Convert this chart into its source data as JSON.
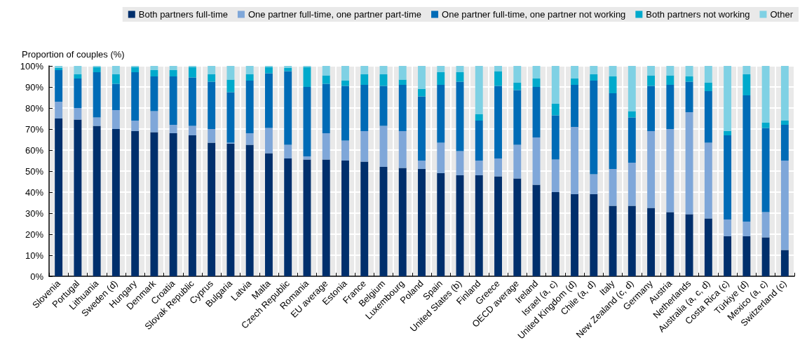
{
  "chart_data": {
    "type": "bar",
    "stacked": true,
    "ylabel": "Proportion of couples (%)",
    "categories": [
      "Slovenia",
      "Portugal",
      "Lithuania",
      "Sweden (d)",
      "Hungary",
      "Denmark",
      "Croatia",
      "Slovak Republic",
      "Cyprus",
      "Bulgaria",
      "Latvia",
      "Malta",
      "Czech Republic",
      "Romania",
      "EU average",
      "Estonia",
      "France",
      "Belgium",
      "Luxembourg",
      "Poland",
      "Spain",
      "United States (b)",
      "Finland",
      "Greece",
      "OECD average",
      "Ireland",
      "Israel (a, c)",
      "United Kingdom (d)",
      "Chile (a, d)",
      "Italy",
      "New Zealand (c, d)",
      "Germany",
      "Austria",
      "Netherlands",
      "Australia (a, c, d)",
      "Costa Rica (c)",
      "Türkiye (d)",
      "Mexico (a, c)",
      "Switzerland (c)"
    ],
    "series": [
      {
        "name": "Both partners full-time",
        "color": "#002f6c",
        "values": [
          75,
          74.5,
          71.5,
          70,
          69,
          68.5,
          68,
          67,
          63.5,
          63,
          62.5,
          58.5,
          56,
          55.5,
          55.5,
          55,
          54.5,
          52,
          51.5,
          51,
          49,
          48,
          48,
          47.5,
          46.5,
          43.5,
          40,
          39,
          39,
          33.5,
          33.5,
          32.5,
          30.5,
          29.5,
          27.5,
          19,
          19,
          18.5,
          12.5
        ]
      },
      {
        "name": "One partner full-time, one partner part-time",
        "color": "#7fa7d9",
        "values": [
          8,
          5.5,
          4,
          9,
          5,
          10,
          4,
          4.5,
          6.5,
          0.5,
          5.5,
          12,
          6.5,
          1.5,
          12.5,
          9.5,
          14.5,
          19.5,
          17.5,
          4,
          14.5,
          11.5,
          7,
          8.5,
          16,
          22.5,
          15.5,
          32,
          9.5,
          17.5,
          20.5,
          36.5,
          39.5,
          48.5,
          36,
          8,
          7,
          12,
          42.5
        ]
      },
      {
        "name": "One partner full-time, one partner not working",
        "color": "#006bb6",
        "values": [
          15,
          14,
          21.5,
          12.5,
          23,
          16.5,
          23,
          23,
          22.5,
          24,
          25,
          26,
          35,
          33,
          23.5,
          26,
          22,
          19,
          22,
          30.5,
          27.5,
          33,
          19,
          34.5,
          26,
          24,
          21,
          20,
          44.5,
          36,
          21.5,
          21.5,
          21,
          14.5,
          24.5,
          40,
          60,
          40,
          17
        ]
      },
      {
        "name": "Both partners not working",
        "color": "#00aacc",
        "values": [
          1,
          2,
          2.5,
          4.5,
          2.5,
          3,
          3,
          5,
          3.5,
          6,
          3,
          3,
          1.5,
          9.5,
          4,
          2.5,
          5,
          5.5,
          2.5,
          3.5,
          6,
          4.5,
          3,
          7,
          3.5,
          4,
          5.5,
          3,
          3,
          8,
          3,
          5,
          4.5,
          2.5,
          4,
          2,
          10,
          2.5,
          2
        ]
      },
      {
        "name": "Other",
        "color": "#7fd1e4",
        "values": [
          1,
          4,
          0.5,
          4,
          0.5,
          2,
          2,
          0.5,
          4,
          6.5,
          4,
          0.5,
          1,
          0.5,
          4.5,
          7,
          4,
          4,
          6.5,
          11,
          3,
          3,
          23,
          2.5,
          8,
          6,
          18,
          6,
          4,
          5,
          21.5,
          4.5,
          4.5,
          5,
          8,
          31,
          4,
          27,
          26
        ]
      }
    ],
    "ylim": [
      0,
      100
    ],
    "yticks": [
      {
        "value": 0,
        "label": "0%"
      },
      {
        "value": 10,
        "label": "10%"
      },
      {
        "value": 20,
        "label": "20%"
      },
      {
        "value": 30,
        "label": "30%"
      },
      {
        "value": 40,
        "label": "40%"
      },
      {
        "value": 50,
        "label": "50%"
      },
      {
        "value": 60,
        "label": "60%"
      },
      {
        "value": 70,
        "label": "70%"
      },
      {
        "value": 80,
        "label": "80%"
      },
      {
        "value": 90,
        "label": "90%"
      },
      {
        "value": 100,
        "label": "100%"
      }
    ],
    "grid": true,
    "legend": "top"
  }
}
